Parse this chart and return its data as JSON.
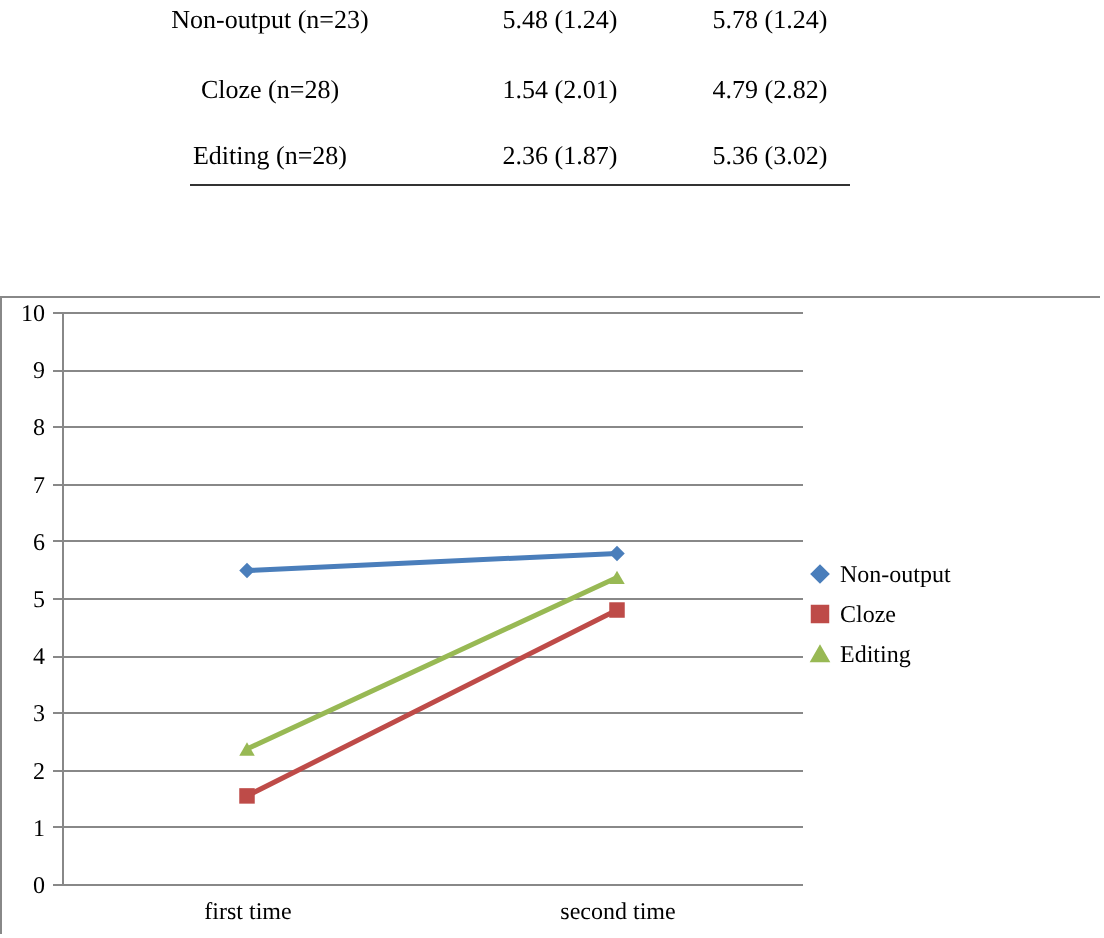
{
  "chart_data": {
    "type": "line",
    "categories": [
      "first time",
      "second time"
    ],
    "series": [
      {
        "name": "Non-output",
        "color": "#4a7ebb",
        "marker": "diamond",
        "values": [
          5.48,
          5.78
        ]
      },
      {
        "name": "Cloze",
        "color": "#be4b48",
        "marker": "square",
        "values": [
          1.54,
          4.79
        ]
      },
      {
        "name": "Editing",
        "color": "#98b954",
        "marker": "triangle",
        "values": [
          2.36,
          5.36
        ]
      }
    ],
    "ylim": [
      0,
      10
    ],
    "yticks": [
      0,
      1,
      2,
      3,
      4,
      5,
      6,
      7,
      8,
      9,
      10
    ],
    "grid": "y",
    "legend": "right",
    "annotations": [
      "Non-output (n=23)",
      "5.48 (1.24)",
      "5.78 (1.24)",
      "Cloze (n=28)",
      "1.54 (2.01)",
      "4.79 (2.82)",
      "Editing (n=28)",
      "2.36 (1.87)",
      "5.36 (3.02)"
    ]
  }
}
